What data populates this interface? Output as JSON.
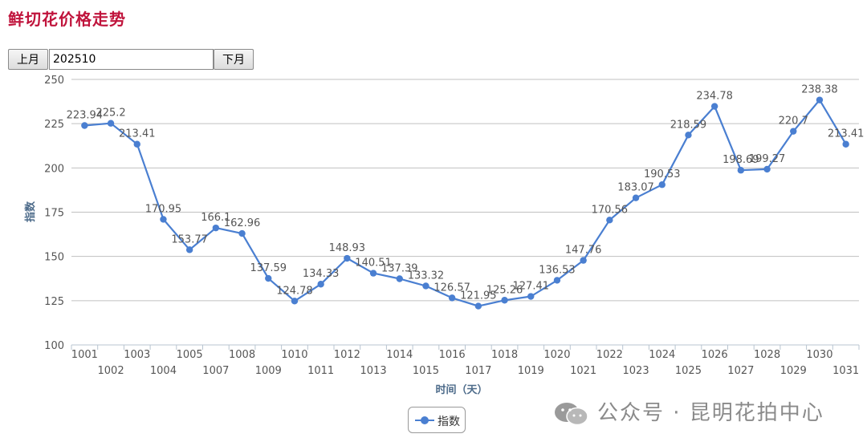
{
  "page": {
    "title": "鲜切花价格走势"
  },
  "controls": {
    "prev_label": "上月",
    "next_label": "下月",
    "month_value": "202510"
  },
  "watermark": {
    "text": "公众号 · 昆明花拍中心",
    "icon": "wechat-icon"
  },
  "colors": {
    "series": "#4a7fd1",
    "title": "#c0143c",
    "grid": "#c0c0c0",
    "axis_label": "#4d6b8a"
  },
  "chart_data": {
    "type": "line",
    "title": "",
    "xlabel": "时间（天）",
    "ylabel": "指数",
    "ylim": [
      100,
      250
    ],
    "yticks": [
      100,
      125,
      150,
      175,
      200,
      225,
      250
    ],
    "grid": true,
    "legend_position": "bottom-center",
    "categories": [
      "1001",
      "1002",
      "1003",
      "1004",
      "1005",
      "1007",
      "1008",
      "1009",
      "1010",
      "1011",
      "1012",
      "1013",
      "1014",
      "1015",
      "1016",
      "1017",
      "1018",
      "1019",
      "1020",
      "1021",
      "1022",
      "1023",
      "1024",
      "1025",
      "1026",
      "1027",
      "1028",
      "1029",
      "1030",
      "1031"
    ],
    "series": [
      {
        "name": "指数",
        "values": [
          223.94,
          225.2,
          213.41,
          170.95,
          153.77,
          166.1,
          162.96,
          137.59,
          124.78,
          134.33,
          148.93,
          140.51,
          137.39,
          133.32,
          126.57,
          121.95,
          125.26,
          127.41,
          136.53,
          147.76,
          170.56,
          183.07,
          190.53,
          218.59,
          234.78,
          198.69,
          199.27,
          220.7,
          238.38,
          213.41
        ]
      }
    ]
  }
}
